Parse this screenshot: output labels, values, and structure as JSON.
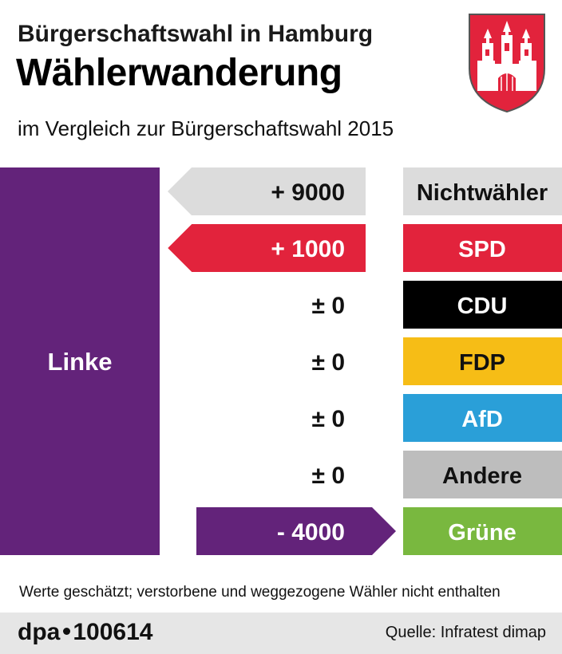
{
  "header": {
    "title": "Bürgerschaftswahl in Hamburg",
    "headline": "Wählerwanderung",
    "subtitle": "im Vergleich zur Bürgerschaftswahl 2015"
  },
  "chart_data": {
    "type": "bar",
    "source_party": "Linke",
    "categories": [
      "Nichtwähler",
      "SPD",
      "CDU",
      "FDP",
      "AfD",
      "Andere",
      "Grüne"
    ],
    "values": [
      9000,
      1000,
      0,
      0,
      0,
      0,
      -4000
    ],
    "value_labels": [
      "+ 9000",
      "+ 1000",
      "± 0",
      "± 0",
      "± 0",
      "± 0",
      "- 4000"
    ],
    "colors": {
      "Linke": "#63237a",
      "Nichtwähler": "#dcdcdc",
      "SPD": "#e2233c",
      "CDU": "#000000",
      "FDP": "#f6bd16",
      "AfD": "#2a9fd8",
      "Andere": "#bdbdbd",
      "Grüne": "#79b83f"
    },
    "label_text_colors": {
      "Nichtwähler": "#111111",
      "SPD": "#ffffff",
      "CDU": "#ffffff",
      "FDP": "#111111",
      "AfD": "#ffffff",
      "Andere": "#111111",
      "Grüne": "#ffffff"
    }
  },
  "footnote": "Werte geschätzt; verstorbene und weggezogene Wähler nicht enthalten",
  "footer": {
    "brand_left": "dpa",
    "brand_right": "100614",
    "source": "Quelle: Infratest dimap"
  },
  "logo": {
    "name": "Hamburg coat of arms",
    "shield_color": "#e2233c",
    "castle_color": "#ffffff"
  }
}
